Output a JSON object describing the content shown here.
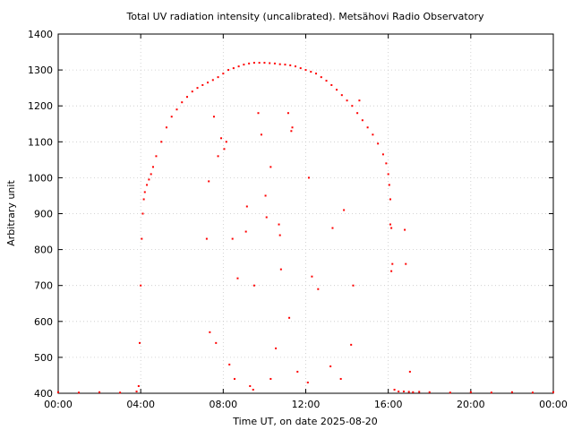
{
  "chart_data": {
    "type": "scatter",
    "title": "Total UV radiation intensity (uncalibrated). Metsähovi Radio Observatory",
    "xlabel": "Time UT, on date 2025-08-20",
    "ylabel": "Arbitrary unit",
    "xlim": [
      0,
      24
    ],
    "ylim": [
      400,
      1400
    ],
    "xticks": [
      "00:00",
      "04:00",
      "08:00",
      "12:00",
      "16:00",
      "20:00",
      "00:00"
    ],
    "yticks": [
      400,
      500,
      600,
      700,
      800,
      900,
      1000,
      1100,
      1200,
      1300,
      1400
    ],
    "grid": true,
    "marker_color": "#ff0000",
    "series": [
      {
        "values_x": [
          0.0,
          1.0,
          2.0,
          3.0,
          3.8,
          3.9,
          3.95,
          4.0,
          4.05,
          4.1,
          4.15,
          4.2,
          4.3,
          4.4,
          4.5,
          4.6,
          4.75,
          5.0,
          5.25,
          5.5,
          5.75,
          6.0,
          6.25,
          6.5,
          6.75,
          7.0,
          7.25,
          7.5,
          7.75,
          8.0,
          8.25,
          8.5,
          8.75,
          9.0,
          9.25,
          9.5,
          9.75,
          10.0,
          10.25,
          10.5,
          10.75,
          11.0,
          11.25,
          11.5,
          11.75,
          12.0,
          12.25,
          12.5,
          12.75,
          13.0,
          13.25,
          13.5,
          13.75,
          14.0,
          14.25,
          14.5,
          14.75,
          15.0,
          15.25,
          15.5,
          15.75,
          15.9,
          16.0,
          16.05,
          16.1,
          16.15,
          16.2,
          16.3,
          16.5,
          16.75,
          17.0,
          17.2,
          17.5,
          18.0,
          19.0,
          20.0,
          21.0,
          22.0,
          23.0,
          24.0,
          7.2,
          7.3,
          7.55,
          7.75,
          7.9,
          8.05,
          8.15,
          8.45,
          8.7,
          9.1,
          9.15,
          9.5,
          9.7,
          9.85,
          10.05,
          10.1,
          10.3,
          10.7,
          10.75,
          10.8,
          11.15,
          11.3,
          11.35,
          12.15,
          12.3,
          12.6,
          13.3,
          13.85,
          14.3,
          14.6,
          16.1,
          16.15,
          16.8,
          16.85,
          17.05,
          7.35,
          7.65,
          8.3,
          8.55,
          9.3,
          9.45,
          10.3,
          10.55,
          11.2,
          11.6,
          12.1,
          13.2,
          13.7,
          14.2
        ],
        "values_y": [
          403,
          402,
          403,
          402,
          405,
          420,
          540,
          700,
          830,
          900,
          940,
          960,
          980,
          995,
          1010,
          1030,
          1060,
          1100,
          1140,
          1170,
          1190,
          1210,
          1225,
          1240,
          1250,
          1258,
          1265,
          1272,
          1280,
          1290,
          1300,
          1305,
          1310,
          1315,
          1318,
          1320,
          1320,
          1320,
          1319,
          1318,
          1316,
          1315,
          1313,
          1310,
          1305,
          1300,
          1295,
          1290,
          1280,
          1270,
          1258,
          1245,
          1230,
          1215,
          1200,
          1180,
          1160,
          1140,
          1120,
          1095,
          1065,
          1040,
          1010,
          980,
          940,
          860,
          760,
          410,
          405,
          405,
          404,
          403,
          404,
          403,
          402,
          403,
          402,
          403,
          402,
          403,
          830,
          990,
          1170,
          1060,
          1110,
          1080,
          1100,
          830,
          720,
          850,
          920,
          700,
          1180,
          1120,
          950,
          890,
          1030,
          870,
          840,
          745,
          1180,
          1130,
          1140,
          1000,
          725,
          690,
          860,
          910,
          700,
          1215,
          870,
          740,
          855,
          760,
          460,
          570,
          540,
          480,
          440,
          420,
          410,
          440,
          525,
          610,
          460,
          430,
          475,
          440,
          535
        ]
      }
    ]
  }
}
